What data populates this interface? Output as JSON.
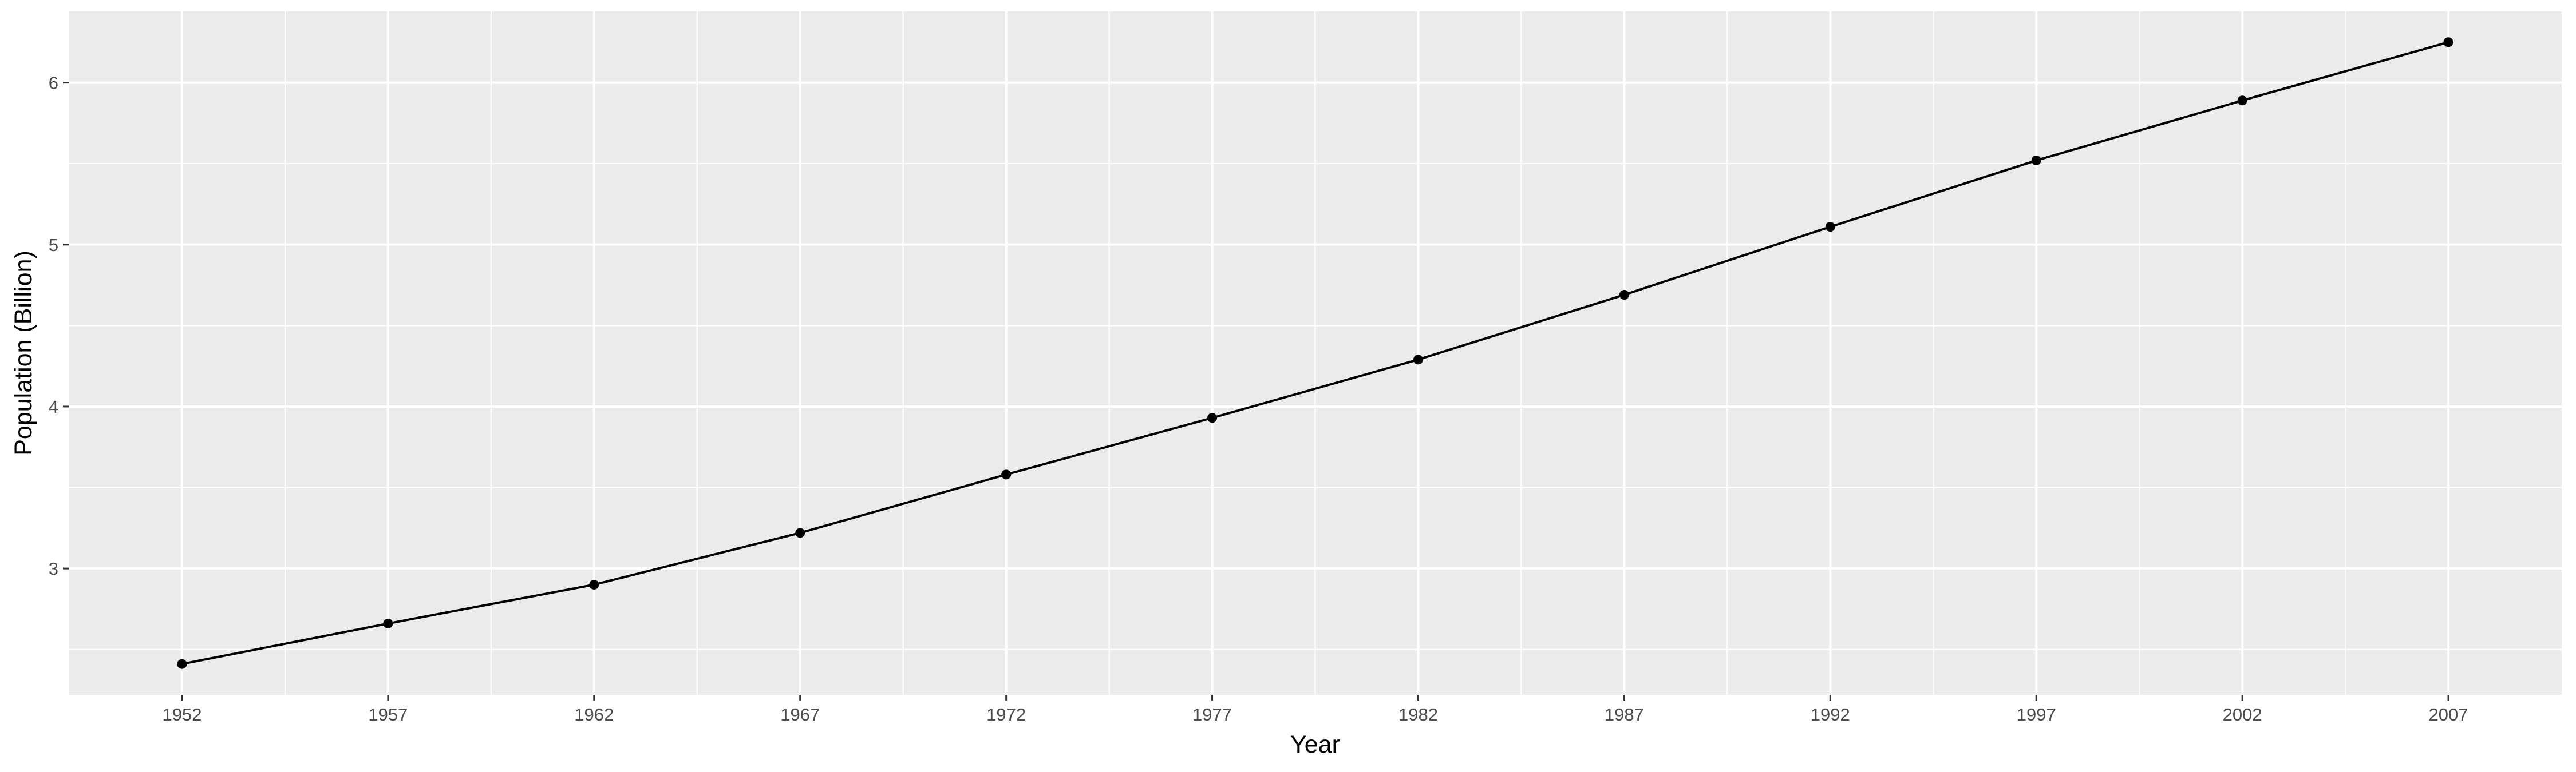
{
  "chart_data": {
    "type": "line",
    "title": "",
    "xlabel": "Year",
    "ylabel": "Population (Billion)",
    "x": [
      1952,
      1957,
      1962,
      1967,
      1972,
      1977,
      1982,
      1987,
      1992,
      1997,
      2002,
      2007
    ],
    "series": [
      {
        "values": [
          2.41,
          2.66,
          2.9,
          3.22,
          3.58,
          3.93,
          4.29,
          4.69,
          5.11,
          5.52,
          5.89,
          6.25
        ]
      }
    ],
    "xticks": [
      1952,
      1957,
      1962,
      1967,
      1972,
      1977,
      1982,
      1987,
      1992,
      1997,
      2002,
      2007
    ],
    "yticks": [
      3,
      4,
      5,
      6
    ],
    "xlim": [
      1949.25,
      2009.75
    ],
    "ylim": [
      2.22,
      6.44
    ],
    "grid": true,
    "legend": "none",
    "colors": {
      "panel": "#ebebeb",
      "grid": "#ffffff",
      "line": "#000000",
      "tick_text": "#4d4d4d",
      "tick_mark": "#333333"
    }
  }
}
